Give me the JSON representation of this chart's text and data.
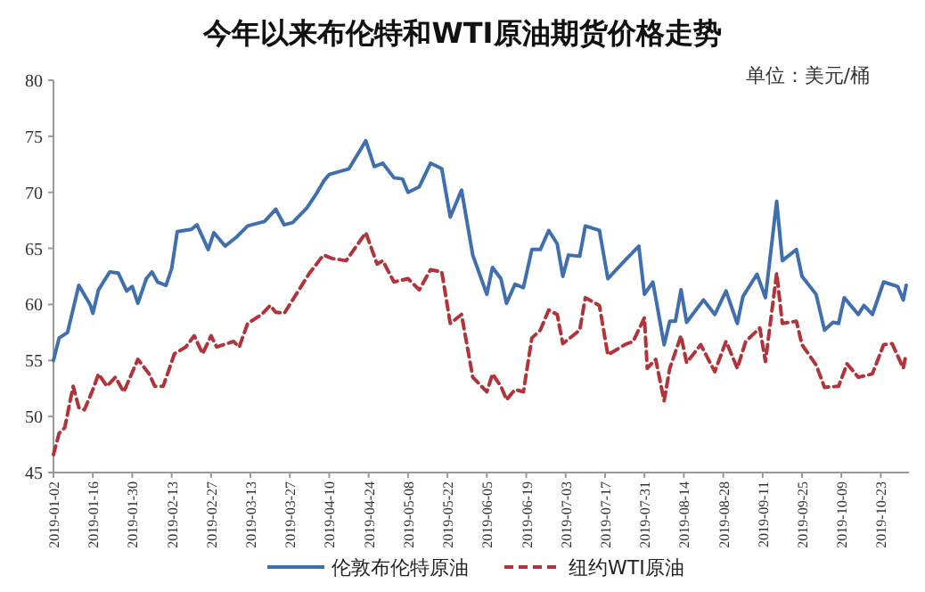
{
  "chart_data": {
    "type": "line",
    "title": "今年以来布伦特和WTI原油期货价格走势",
    "subtitle": "单位：美元/桶",
    "x": [
      "2019-01-02",
      "2019-01-04",
      "2019-01-07",
      "2019-01-11",
      "2019-01-15",
      "2019-01-16",
      "2019-01-18",
      "2019-01-22",
      "2019-01-25",
      "2019-01-28",
      "2019-01-30",
      "2019-02-01",
      "2019-02-04",
      "2019-02-06",
      "2019-02-08",
      "2019-02-11",
      "2019-02-13",
      "2019-02-15",
      "2019-02-20",
      "2019-02-22",
      "2019-02-26",
      "2019-02-28",
      "2019-03-04",
      "2019-03-08",
      "2019-03-12",
      "2019-03-18",
      "2019-03-22",
      "2019-03-25",
      "2019-03-28",
      "2019-04-02",
      "2019-04-05",
      "2019-04-08",
      "2019-04-10",
      "2019-04-17",
      "2019-04-23",
      "2019-04-26",
      "2019-04-29",
      "2019-05-03",
      "2019-05-06",
      "2019-05-08",
      "2019-05-12",
      "2019-05-16",
      "2019-05-20",
      "2019-05-23",
      "2019-05-27",
      "2019-05-31",
      "2019-06-05",
      "2019-06-07",
      "2019-06-10",
      "2019-06-12",
      "2019-06-15",
      "2019-06-18",
      "2019-06-21",
      "2019-06-24",
      "2019-06-27",
      "2019-06-30",
      "2019-07-02",
      "2019-07-04",
      "2019-07-08",
      "2019-07-10",
      "2019-07-15",
      "2019-07-18",
      "2019-07-24",
      "2019-07-29",
      "2019-07-31",
      "2019-08-03",
      "2019-08-07",
      "2019-08-09",
      "2019-08-11",
      "2019-08-13",
      "2019-08-15",
      "2019-08-21",
      "2019-08-25",
      "2019-08-29",
      "2019-09-02",
      "2019-09-04",
      "2019-09-09",
      "2019-09-12",
      "2019-09-16",
      "2019-09-18",
      "2019-09-23",
      "2019-09-25",
      "2019-09-30",
      "2019-10-03",
      "2019-10-06",
      "2019-10-08",
      "2019-10-10",
      "2019-10-15",
      "2019-10-17",
      "2019-10-20",
      "2019-10-24",
      "2019-10-29",
      "2019-10-31",
      "2019-11-01"
    ],
    "series": [
      {
        "name": "伦敦布伦特原油",
        "color": "#3f6fae",
        "line_style": "solid",
        "values": [
          55.0,
          57.0,
          57.5,
          61.7,
          60.0,
          59.2,
          61.3,
          62.9,
          62.8,
          61.2,
          61.6,
          60.1,
          62.3,
          62.9,
          62.0,
          61.7,
          63.2,
          66.5,
          66.7,
          67.1,
          64.9,
          66.4,
          65.2,
          66.0,
          67.0,
          67.4,
          68.5,
          67.1,
          67.3,
          68.6,
          69.7,
          71.0,
          71.6,
          72.1,
          74.6,
          72.3,
          72.6,
          71.3,
          71.2,
          70.0,
          70.5,
          72.6,
          72.1,
          67.8,
          70.2,
          64.4,
          60.9,
          63.3,
          62.3,
          60.1,
          61.8,
          61.5,
          64.9,
          64.9,
          66.6,
          65.4,
          62.5,
          64.4,
          64.3,
          67.0,
          66.6,
          62.3,
          63.9,
          65.2,
          60.9,
          62.0,
          56.4,
          58.5,
          58.5,
          61.3,
          58.4,
          60.4,
          59.1,
          61.2,
          58.3,
          60.7,
          62.7,
          60.6,
          69.2,
          63.9,
          64.9,
          62.5,
          60.9,
          57.7,
          58.4,
          58.3,
          60.6,
          59.1,
          59.9,
          59.1,
          62.0,
          61.6,
          60.4,
          61.7
        ]
      },
      {
        "name": "纽约WTI原油",
        "color": "#b0343a",
        "line_style": "dashed",
        "x": [
          "2019-01-02",
          "2019-01-04",
          "2019-01-06",
          "2019-01-09",
          "2019-01-11",
          "2019-01-13",
          "2019-01-16",
          "2019-01-18",
          "2019-01-21",
          "2019-01-24",
          "2019-01-27",
          "2019-02-01",
          "2019-02-05",
          "2019-02-07",
          "2019-02-10",
          "2019-02-14",
          "2019-02-18",
          "2019-02-21",
          "2019-02-24",
          "2019-02-27",
          "2019-03-01",
          "2019-03-07",
          "2019-03-09",
          "2019-03-12",
          "2019-03-17",
          "2019-03-20",
          "2019-03-22",
          "2019-03-25",
          "2019-03-30",
          "2019-04-03",
          "2019-04-07",
          "2019-04-08",
          "2019-04-11",
          "2019-04-16",
          "2019-04-23",
          "2019-04-27",
          "2019-04-29",
          "2019-05-03",
          "2019-05-08",
          "2019-05-12",
          "2019-05-16",
          "2019-05-20",
          "2019-05-23",
          "2019-05-27",
          "2019-05-31",
          "2019-06-05",
          "2019-06-07",
          "2019-06-10",
          "2019-06-12",
          "2019-06-15",
          "2019-06-18",
          "2019-06-21",
          "2019-06-24",
          "2019-06-27",
          "2019-06-30",
          "2019-07-02",
          "2019-07-08",
          "2019-07-10",
          "2019-07-15",
          "2019-07-18",
          "2019-07-24",
          "2019-07-27",
          "2019-07-31",
          "2019-08-01",
          "2019-08-04",
          "2019-08-07",
          "2019-08-09",
          "2019-08-13",
          "2019-08-15",
          "2019-08-20",
          "2019-08-25",
          "2019-08-29",
          "2019-09-02",
          "2019-09-05",
          "2019-09-10",
          "2019-09-12",
          "2019-09-16",
          "2019-09-18",
          "2019-09-23",
          "2019-09-25",
          "2019-09-30",
          "2019-10-03",
          "2019-10-08",
          "2019-10-11",
          "2019-10-15",
          "2019-10-20",
          "2019-10-24",
          "2019-10-27",
          "2019-10-31",
          "2019-11-01"
        ],
        "values": [
          46.6,
          48.5,
          49.0,
          52.7,
          50.8,
          50.6,
          52.4,
          53.8,
          52.7,
          53.5,
          52.2,
          55.1,
          53.8,
          52.7,
          52.7,
          55.6,
          56.2,
          57.2,
          55.6,
          57.2,
          56.2,
          56.7,
          56.2,
          58.3,
          59.1,
          59.9,
          59.3,
          59.2,
          61.2,
          62.8,
          64.1,
          64.4,
          64.1,
          63.9,
          66.4,
          63.6,
          63.9,
          62.0,
          62.3,
          61.3,
          63.1,
          62.9,
          58.3,
          59.1,
          53.5,
          52.2,
          53.8,
          52.7,
          51.5,
          52.4,
          52.2,
          57.0,
          57.7,
          59.5,
          59.1,
          56.5,
          57.7,
          60.6,
          59.9,
          55.5,
          56.4,
          56.7,
          58.8,
          54.3,
          55.1,
          51.4,
          54.3,
          57.2,
          54.8,
          56.4,
          54.0,
          56.7,
          54.3,
          56.7,
          57.9,
          54.9,
          62.8,
          58.3,
          58.5,
          56.4,
          54.6,
          52.6,
          52.7,
          54.7,
          53.5,
          53.8,
          56.4,
          56.5,
          54.3,
          55.6
        ]
      }
    ],
    "xlim": [
      "2019-01-02",
      "2019-11-02"
    ],
    "xticks": [
      {
        "value": "2019-01-02",
        "label": "2019-01-02"
      },
      {
        "value": "2019-01-16",
        "label": "2019-01-16"
      },
      {
        "value": "2019-01-30",
        "label": "2019-01-30"
      },
      {
        "value": "2019-02-13",
        "label": "2019-02-13"
      },
      {
        "value": "2019-02-27",
        "label": "2019-02-27"
      },
      {
        "value": "2019-03-13",
        "label": "2019-03-13"
      },
      {
        "value": "2019-03-27",
        "label": "2019-03-27"
      },
      {
        "value": "2019-04-10",
        "label": "2019-04-10"
      },
      {
        "value": "2019-04-24",
        "label": "2019-04-24"
      },
      {
        "value": "2019-05-08",
        "label": "2019-05-08"
      },
      {
        "value": "2019-05-22",
        "label": "2019-05-22"
      },
      {
        "value": "2019-06-05",
        "label": "2019-06-05"
      },
      {
        "value": "2019-06-19",
        "label": "2019-06-19"
      },
      {
        "value": "2019-07-03",
        "label": "2019-07-03"
      },
      {
        "value": "2019-07-17",
        "label": "2019-07-17"
      },
      {
        "value": "2019-07-31",
        "label": "2019-07-31"
      },
      {
        "value": "2019-08-14",
        "label": "2019-08-14"
      },
      {
        "value": "2019-08-28",
        "label": "2019-08-28"
      },
      {
        "value": "2019-09-11",
        "label": "2019-09-11"
      },
      {
        "value": "2019-09-25",
        "label": "2019-09-25"
      },
      {
        "value": "2019-10-09",
        "label": "2019-10-09"
      },
      {
        "value": "2019-10-23",
        "label": "2019-10-23"
      }
    ],
    "ylim": [
      45,
      80
    ],
    "yticks": [
      45,
      50,
      55,
      60,
      65,
      70,
      75,
      80
    ],
    "legend": "bottom",
    "marker": "none"
  }
}
